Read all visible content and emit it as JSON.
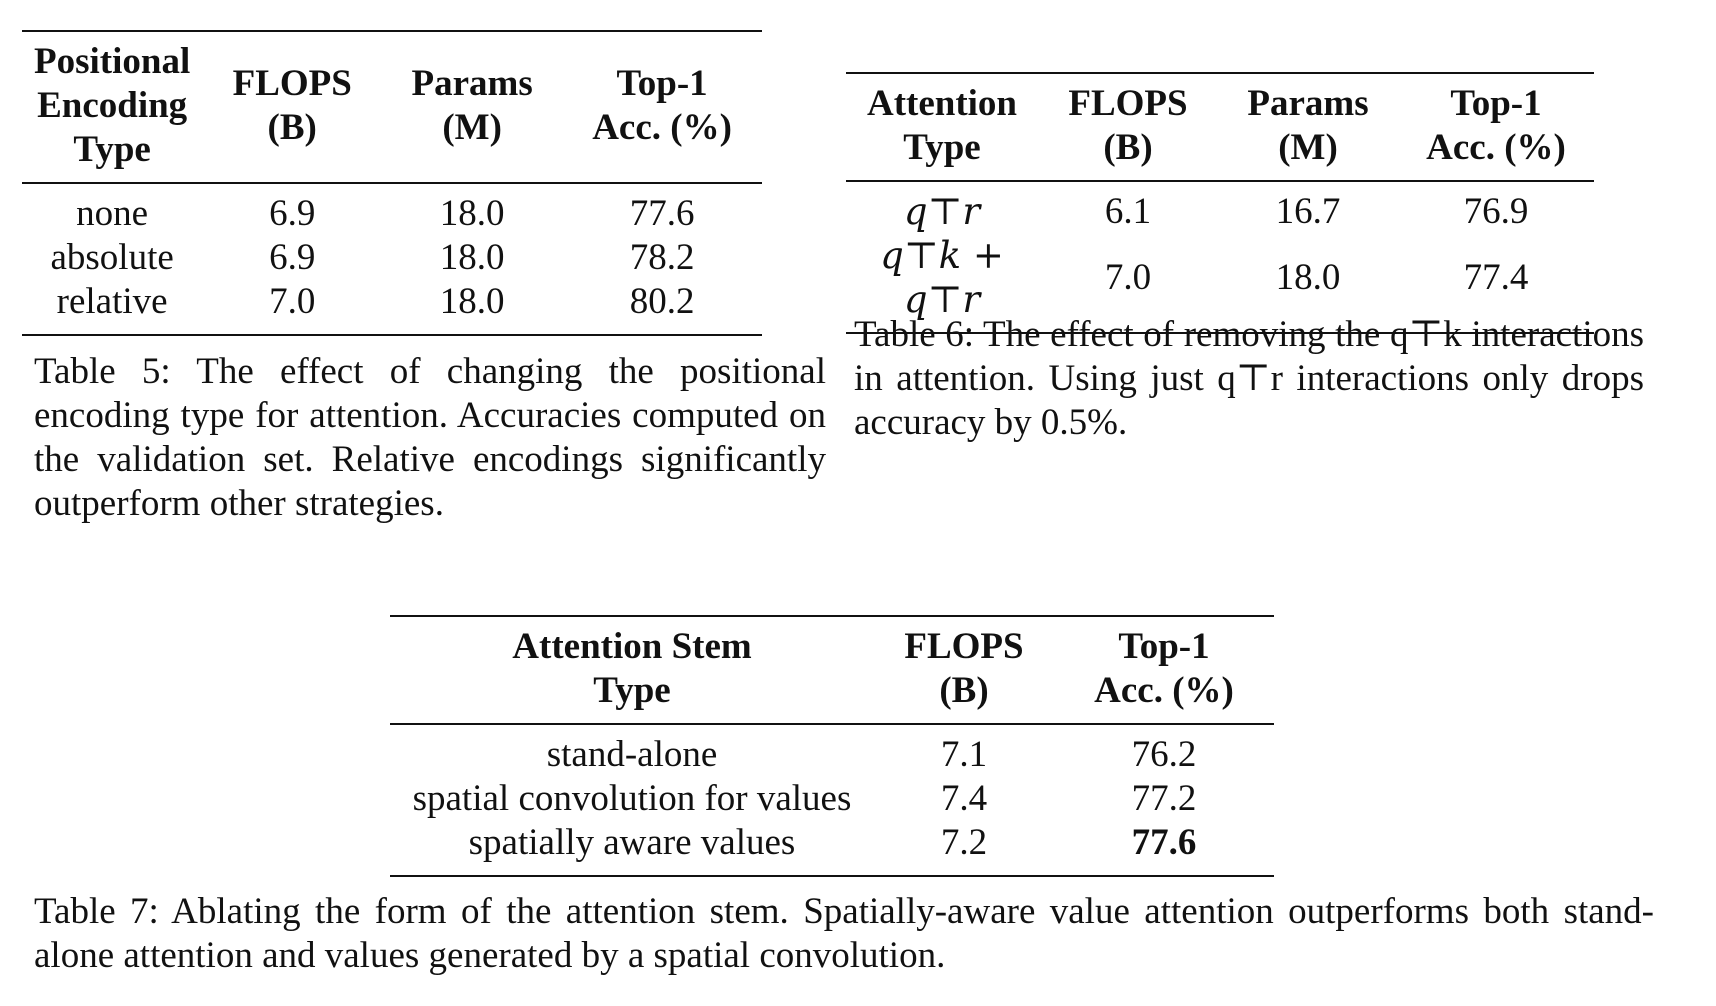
{
  "table5": {
    "headers": [
      "Positional Encoding Type",
      "FLOPS (B)",
      "Params (M)",
      "Top-1 Acc. (%)"
    ],
    "rows": [
      [
        "none",
        "6.9",
        "18.0",
        "77.6"
      ],
      [
        "absolute",
        "6.9",
        "18.0",
        "78.2"
      ],
      [
        "relative",
        "7.0",
        "18.0",
        "80.2"
      ]
    ],
    "caption": "Table 5: The effect of changing the positional encoding type for attention. Accuracies computed on the validation set. Relative encodings significantly outperform other strategies."
  },
  "table6": {
    "headers": [
      "Attention Type",
      "FLOPS (B)",
      "Params (M)",
      "Top-1 Acc. (%)"
    ],
    "rows": [
      [
        "q⊤r",
        "6.1",
        "16.7",
        "76.9"
      ],
      [
        "q⊤k + q⊤r",
        "7.0",
        "18.0",
        "77.4"
      ]
    ],
    "caption": "Table 6: The effect of removing the q⊤k interactions in attention. Using just q⊤r interactions only drops accuracy by 0.5%."
  },
  "table7": {
    "headers": [
      "Attention Stem Type",
      "FLOPS (B)",
      "Top-1 Acc. (%)"
    ],
    "rows": [
      [
        "stand-alone",
        "7.1",
        "76.2"
      ],
      [
        "spatial convolution for values",
        "7.4",
        "77.2"
      ],
      [
        "spatially aware values",
        "7.2",
        "77.6"
      ]
    ],
    "caption": "Table 7: Ablating the form of the attention stem. Spatially-aware value attention outperforms both stand-alone attention and values generated by a spatial convolution."
  }
}
